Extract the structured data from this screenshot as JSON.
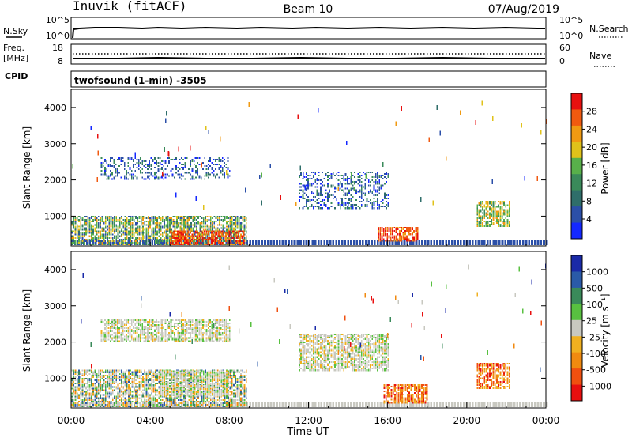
{
  "header": {
    "title": "Inuvik (fitACF)",
    "beam": "Beam 10",
    "date": "07/Aug/2019"
  },
  "nsky_panel": {
    "left_label": "N.Sky",
    "right_label": "N.Search",
    "left_ticks": [
      "10^5",
      "10^0"
    ],
    "right_ticks": [
      "10^5",
      "10^0"
    ]
  },
  "freq_panel": {
    "left_label": "Freq.",
    "units": "[MHz]",
    "right_label": "Nave",
    "left_ticks": [
      "18",
      "8"
    ],
    "right_ticks": [
      "60",
      "0"
    ]
  },
  "cpid": {
    "label": "CPID",
    "text": "twofsound (1-min) -3505"
  },
  "colors": {
    "power": [
      "#1428ff",
      "#2b4fa8",
      "#2f6e6a",
      "#3a8a5a",
      "#58b04a",
      "#e0c21a",
      "#f09a12",
      "#f05a10",
      "#e81010"
    ],
    "velocity": [
      "#e81010",
      "#f05010",
      "#f08a10",
      "#f0b020",
      "#c8c8c0",
      "#58c040",
      "#3a8a5a",
      "#2a5aa8",
      "#1a2aa8"
    ]
  },
  "chart_data": [
    {
      "type": "heatmap",
      "name": "power",
      "ylabel": "Slant Range [km]",
      "ylim": [
        180,
        4500
      ],
      "y_ticks": [
        1000,
        2000,
        3000,
        4000
      ],
      "x_ticks": [
        "00:00",
        "04:00",
        "08:00",
        "12:00",
        "16:00",
        "20:00",
        "00:00"
      ],
      "colorbar": {
        "label": "Power [dB]",
        "ticks": [
          "28",
          "24",
          "20",
          "16",
          "12",
          "8",
          "4"
        ]
      },
      "regions": [
        {
          "t": [
            0.0,
            8.9
          ],
          "r": [
            200,
            1000
          ],
          "level": "mixed-low"
        },
        {
          "t": [
            5.0,
            8.7
          ],
          "r": [
            200,
            600
          ],
          "level": "high"
        },
        {
          "t": [
            1.5,
            8.0
          ],
          "r": [
            2000,
            2600
          ],
          "level": "low"
        },
        {
          "t": [
            11.5,
            16.0
          ],
          "r": [
            1200,
            2200
          ],
          "level": "low"
        },
        {
          "t": [
            15.5,
            17.5
          ],
          "r": [
            300,
            700
          ],
          "level": "high"
        },
        {
          "t": [
            20.5,
            22.2
          ],
          "r": [
            700,
            1400
          ],
          "level": "mid"
        }
      ]
    },
    {
      "type": "heatmap",
      "name": "velocity",
      "ylabel": "Slant Range [km]",
      "xlabel": "Time UT",
      "ylim": [
        180,
        4500
      ],
      "y_ticks": [
        1000,
        2000,
        3000,
        4000
      ],
      "x_ticks": [
        "00:00",
        "04:00",
        "08:00",
        "12:00",
        "16:00",
        "20:00",
        "00:00"
      ],
      "colorbar": {
        "label": "Velocity [m s⁻¹]",
        "ticks": [
          "1000",
          "500",
          "100",
          "25",
          "-25",
          "-100",
          "-500",
          "-1000"
        ]
      },
      "regions": [
        {
          "t": [
            0.0,
            8.9
          ],
          "r": [
            200,
            1200
          ],
          "level": "mixed"
        },
        {
          "t": [
            4.5,
            8.0
          ],
          "r": [
            500,
            1200
          ],
          "level": "near-zero"
        },
        {
          "t": [
            1.5,
            8.0
          ],
          "r": [
            2000,
            2600
          ],
          "level": "near-zero"
        },
        {
          "t": [
            11.5,
            16.0
          ],
          "r": [
            1200,
            2200
          ],
          "level": "near-zero"
        },
        {
          "t": [
            15.8,
            18.0
          ],
          "r": [
            300,
            800
          ],
          "level": "negative"
        },
        {
          "t": [
            20.5,
            22.2
          ],
          "r": [
            700,
            1400
          ],
          "level": "negative"
        }
      ]
    }
  ]
}
